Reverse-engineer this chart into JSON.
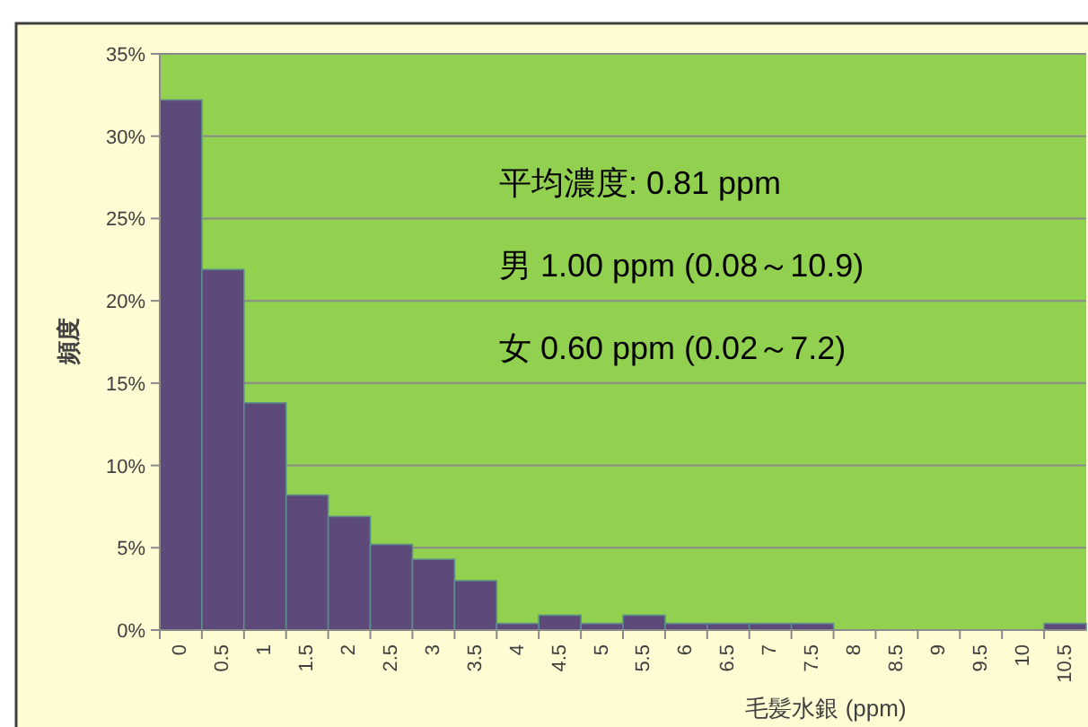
{
  "chart_data": {
    "type": "bar",
    "xlabel": "毛髪水銀 (ppm)",
    "ylabel": "頻度",
    "categories": [
      "0",
      "0.5",
      "1",
      "1.5",
      "2",
      "2.5",
      "3",
      "3.5",
      "4",
      "4.5",
      "5",
      "5.5",
      "6",
      "6.5",
      "7",
      "7.5",
      "8",
      "8.5",
      "9",
      "9.5",
      "10",
      "10.5"
    ],
    "values": [
      32.2,
      21.9,
      13.8,
      8.2,
      6.9,
      5.2,
      4.3,
      3.0,
      0.4,
      0.9,
      0.4,
      0.9,
      0.4,
      0.4,
      0.4,
      0.4,
      0,
      0,
      0,
      0,
      0,
      0.4
    ],
    "color": "#5e4a7a",
    "ylim": [
      0,
      35
    ],
    "yticks": [
      {
        "value": 0,
        "label": "0%"
      },
      {
        "value": 5,
        "label": "5%"
      },
      {
        "value": 10,
        "label": "10%"
      },
      {
        "value": 15,
        "label": "15%"
      },
      {
        "value": 20,
        "label": "20%"
      },
      {
        "value": 25,
        "label": "25%"
      },
      {
        "value": 30,
        "label": "30%"
      },
      {
        "value": 35,
        "label": "35%"
      }
    ],
    "grid": "y",
    "annotations": [
      "平均濃度: 0.81 ppm",
      "男  1.00 ppm (0.08～10.9)",
      "女  0.60 ppm (0.02～7.2)"
    ]
  }
}
